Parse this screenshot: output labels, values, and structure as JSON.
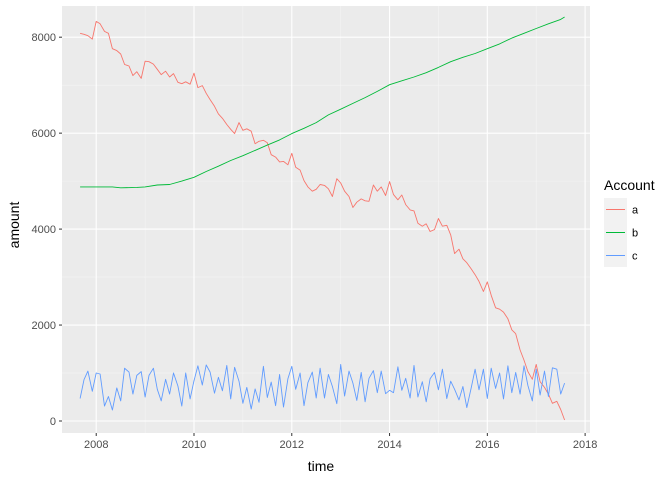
{
  "chart_data": {
    "type": "line",
    "xlabel": "time",
    "ylabel": "amount",
    "xlim": [
      2007.3,
      2018.1
    ],
    "ylim": [
      -250,
      8650
    ],
    "x_ticks": [
      2008,
      2010,
      2012,
      2014,
      2016,
      2018
    ],
    "x_tick_labels": [
      "2008",
      "2010",
      "2012",
      "2014",
      "2016",
      "2018"
    ],
    "y_ticks": [
      0,
      2000,
      4000,
      6000,
      8000
    ],
    "y_tick_labels": [
      "0",
      "2000",
      "4000",
      "6000",
      "8000"
    ],
    "grid": true,
    "legend": {
      "title": "Account",
      "position": "right"
    },
    "series": [
      {
        "name": "a",
        "color": "#F8766D",
        "points": [
          [
            2007.67,
            8080
          ],
          [
            2007.75,
            8060
          ],
          [
            2007.83,
            8030
          ],
          [
            2007.92,
            7960
          ],
          [
            2008.0,
            8330
          ],
          [
            2008.08,
            8280
          ],
          [
            2008.17,
            8120
          ],
          [
            2008.25,
            8080
          ],
          [
            2008.33,
            7760
          ],
          [
            2008.42,
            7720
          ],
          [
            2008.5,
            7650
          ],
          [
            2008.58,
            7430
          ],
          [
            2008.67,
            7400
          ],
          [
            2008.75,
            7200
          ],
          [
            2008.83,
            7280
          ],
          [
            2008.92,
            7140
          ],
          [
            2009.0,
            7500
          ],
          [
            2009.08,
            7490
          ],
          [
            2009.17,
            7440
          ],
          [
            2009.25,
            7330
          ],
          [
            2009.33,
            7220
          ],
          [
            2009.42,
            7290
          ],
          [
            2009.5,
            7170
          ],
          [
            2009.58,
            7240
          ],
          [
            2009.67,
            7060
          ],
          [
            2009.75,
            7030
          ],
          [
            2009.83,
            7070
          ],
          [
            2009.92,
            7020
          ],
          [
            2010.0,
            7250
          ],
          [
            2010.08,
            6950
          ],
          [
            2010.17,
            6990
          ],
          [
            2010.25,
            6830
          ],
          [
            2010.33,
            6700
          ],
          [
            2010.42,
            6560
          ],
          [
            2010.5,
            6400
          ],
          [
            2010.58,
            6310
          ],
          [
            2010.67,
            6180
          ],
          [
            2010.75,
            6080
          ],
          [
            2010.83,
            5990
          ],
          [
            2010.92,
            6220
          ],
          [
            2011.0,
            6060
          ],
          [
            2011.08,
            6090
          ],
          [
            2011.17,
            6040
          ],
          [
            2011.25,
            5780
          ],
          [
            2011.33,
            5830
          ],
          [
            2011.42,
            5850
          ],
          [
            2011.5,
            5800
          ],
          [
            2011.58,
            5550
          ],
          [
            2011.67,
            5500
          ],
          [
            2011.75,
            5400
          ],
          [
            2011.83,
            5410
          ],
          [
            2011.92,
            5340
          ],
          [
            2012.0,
            5580
          ],
          [
            2012.08,
            5290
          ],
          [
            2012.17,
            5230
          ],
          [
            2012.25,
            5010
          ],
          [
            2012.33,
            4880
          ],
          [
            2012.42,
            4790
          ],
          [
            2012.5,
            4830
          ],
          [
            2012.58,
            4930
          ],
          [
            2012.67,
            4910
          ],
          [
            2012.75,
            4840
          ],
          [
            2012.83,
            4680
          ],
          [
            2012.92,
            5050
          ],
          [
            2013.0,
            4960
          ],
          [
            2013.08,
            4790
          ],
          [
            2013.17,
            4680
          ],
          [
            2013.25,
            4450
          ],
          [
            2013.33,
            4560
          ],
          [
            2013.42,
            4630
          ],
          [
            2013.5,
            4590
          ],
          [
            2013.58,
            4580
          ],
          [
            2013.67,
            4920
          ],
          [
            2013.75,
            4790
          ],
          [
            2013.83,
            4880
          ],
          [
            2013.92,
            4700
          ],
          [
            2014.0,
            4990
          ],
          [
            2014.08,
            4720
          ],
          [
            2014.17,
            4610
          ],
          [
            2014.25,
            4710
          ],
          [
            2014.33,
            4510
          ],
          [
            2014.42,
            4400
          ],
          [
            2014.5,
            4380
          ],
          [
            2014.58,
            4120
          ],
          [
            2014.67,
            4060
          ],
          [
            2014.75,
            4110
          ],
          [
            2014.83,
            3950
          ],
          [
            2014.92,
            3990
          ],
          [
            2015.0,
            4220
          ],
          [
            2015.08,
            4060
          ],
          [
            2015.17,
            4080
          ],
          [
            2015.25,
            3880
          ],
          [
            2015.33,
            3490
          ],
          [
            2015.42,
            3580
          ],
          [
            2015.5,
            3380
          ],
          [
            2015.58,
            3300
          ],
          [
            2015.67,
            3170
          ],
          [
            2015.75,
            3050
          ],
          [
            2015.83,
            2910
          ],
          [
            2015.92,
            2700
          ],
          [
            2016.0,
            2900
          ],
          [
            2016.08,
            2620
          ],
          [
            2016.17,
            2360
          ],
          [
            2016.25,
            2330
          ],
          [
            2016.33,
            2270
          ],
          [
            2016.42,
            2130
          ],
          [
            2016.5,
            1900
          ],
          [
            2016.58,
            1820
          ],
          [
            2016.67,
            1480
          ],
          [
            2016.75,
            1270
          ],
          [
            2016.83,
            1030
          ],
          [
            2016.92,
            870
          ],
          [
            2017.0,
            1180
          ],
          [
            2017.08,
            820
          ],
          [
            2017.17,
            700
          ],
          [
            2017.25,
            560
          ],
          [
            2017.33,
            370
          ],
          [
            2017.42,
            410
          ],
          [
            2017.5,
            240
          ],
          [
            2017.58,
            20
          ]
        ]
      },
      {
        "name": "b",
        "color": "#00BA38",
        "points": [
          [
            2007.67,
            4880
          ],
          [
            2008.0,
            4880
          ],
          [
            2008.33,
            4880
          ],
          [
            2008.5,
            4860
          ],
          [
            2008.83,
            4870
          ],
          [
            2009.0,
            4880
          ],
          [
            2009.25,
            4920
          ],
          [
            2009.5,
            4930
          ],
          [
            2009.75,
            5000
          ],
          [
            2010.0,
            5080
          ],
          [
            2010.25,
            5200
          ],
          [
            2010.5,
            5310
          ],
          [
            2010.75,
            5430
          ],
          [
            2011.0,
            5530
          ],
          [
            2011.25,
            5640
          ],
          [
            2011.5,
            5750
          ],
          [
            2011.75,
            5860
          ],
          [
            2012.0,
            5990
          ],
          [
            2012.25,
            6100
          ],
          [
            2012.5,
            6220
          ],
          [
            2012.75,
            6380
          ],
          [
            2013.0,
            6500
          ],
          [
            2013.25,
            6620
          ],
          [
            2013.5,
            6740
          ],
          [
            2013.75,
            6870
          ],
          [
            2014.0,
            7010
          ],
          [
            2014.25,
            7090
          ],
          [
            2014.5,
            7170
          ],
          [
            2014.75,
            7260
          ],
          [
            2015.0,
            7370
          ],
          [
            2015.25,
            7490
          ],
          [
            2015.5,
            7580
          ],
          [
            2015.75,
            7660
          ],
          [
            2016.0,
            7760
          ],
          [
            2016.25,
            7860
          ],
          [
            2016.5,
            7980
          ],
          [
            2016.75,
            8080
          ],
          [
            2017.0,
            8180
          ],
          [
            2017.25,
            8280
          ],
          [
            2017.5,
            8370
          ],
          [
            2017.58,
            8420
          ]
        ]
      },
      {
        "name": "c",
        "color": "#619CFF",
        "points": [
          [
            2007.67,
            470
          ],
          [
            2007.75,
            860
          ],
          [
            2007.83,
            1040
          ],
          [
            2007.92,
            620
          ],
          [
            2008.0,
            1000
          ],
          [
            2008.08,
            980
          ],
          [
            2008.17,
            310
          ],
          [
            2008.25,
            510
          ],
          [
            2008.33,
            230
          ],
          [
            2008.42,
            690
          ],
          [
            2008.5,
            420
          ],
          [
            2008.58,
            1100
          ],
          [
            2008.67,
            1020
          ],
          [
            2008.75,
            560
          ],
          [
            2008.83,
            950
          ],
          [
            2008.92,
            1030
          ],
          [
            2009.0,
            500
          ],
          [
            2009.08,
            950
          ],
          [
            2009.17,
            1100
          ],
          [
            2009.25,
            660
          ],
          [
            2009.33,
            420
          ],
          [
            2009.42,
            870
          ],
          [
            2009.5,
            560
          ],
          [
            2009.58,
            1000
          ],
          [
            2009.67,
            730
          ],
          [
            2009.75,
            310
          ],
          [
            2009.83,
            1000
          ],
          [
            2009.92,
            460
          ],
          [
            2010.0,
            840
          ],
          [
            2010.08,
            1150
          ],
          [
            2010.17,
            750
          ],
          [
            2010.25,
            1170
          ],
          [
            2010.33,
            1020
          ],
          [
            2010.42,
            580
          ],
          [
            2010.5,
            910
          ],
          [
            2010.58,
            630
          ],
          [
            2010.67,
            1160
          ],
          [
            2010.75,
            460
          ],
          [
            2010.83,
            1120
          ],
          [
            2010.92,
            830
          ],
          [
            2011.0,
            370
          ],
          [
            2011.08,
            700
          ],
          [
            2011.17,
            250
          ],
          [
            2011.25,
            670
          ],
          [
            2011.33,
            390
          ],
          [
            2011.42,
            1140
          ],
          [
            2011.5,
            490
          ],
          [
            2011.58,
            810
          ],
          [
            2011.67,
            320
          ],
          [
            2011.75,
            970
          ],
          [
            2011.83,
            290
          ],
          [
            2011.92,
            880
          ],
          [
            2012.0,
            1140
          ],
          [
            2012.08,
            660
          ],
          [
            2012.17,
            1000
          ],
          [
            2012.25,
            320
          ],
          [
            2012.33,
            800
          ],
          [
            2012.42,
            1020
          ],
          [
            2012.5,
            480
          ],
          [
            2012.58,
            1100
          ],
          [
            2012.67,
            480
          ],
          [
            2012.75,
            970
          ],
          [
            2012.83,
            720
          ],
          [
            2012.92,
            360
          ],
          [
            2013.0,
            1180
          ],
          [
            2013.08,
            520
          ],
          [
            2013.17,
            1040
          ],
          [
            2013.25,
            790
          ],
          [
            2013.33,
            430
          ],
          [
            2013.42,
            1010
          ],
          [
            2013.5,
            400
          ],
          [
            2013.58,
            890
          ],
          [
            2013.67,
            1050
          ],
          [
            2013.75,
            590
          ],
          [
            2013.83,
            1040
          ],
          [
            2013.92,
            570
          ],
          [
            2014.0,
            640
          ],
          [
            2014.08,
            590
          ],
          [
            2014.17,
            1130
          ],
          [
            2014.25,
            640
          ],
          [
            2014.33,
            890
          ],
          [
            2014.42,
            480
          ],
          [
            2014.5,
            1160
          ],
          [
            2014.58,
            500
          ],
          [
            2014.67,
            820
          ],
          [
            2014.75,
            400
          ],
          [
            2014.83,
            880
          ],
          [
            2014.92,
            1010
          ],
          [
            2015.0,
            650
          ],
          [
            2015.08,
            1080
          ],
          [
            2015.17,
            470
          ],
          [
            2015.25,
            830
          ],
          [
            2015.33,
            660
          ],
          [
            2015.42,
            440
          ],
          [
            2015.5,
            720
          ],
          [
            2015.58,
            280
          ],
          [
            2015.67,
            690
          ],
          [
            2015.75,
            1080
          ],
          [
            2015.83,
            650
          ],
          [
            2015.92,
            1080
          ],
          [
            2016.0,
            470
          ],
          [
            2016.08,
            1100
          ],
          [
            2016.17,
            680
          ],
          [
            2016.25,
            1000
          ],
          [
            2016.33,
            460
          ],
          [
            2016.42,
            1150
          ],
          [
            2016.5,
            590
          ],
          [
            2016.58,
            1010
          ],
          [
            2016.67,
            560
          ],
          [
            2016.75,
            1150
          ],
          [
            2016.83,
            740
          ],
          [
            2016.92,
            420
          ],
          [
            2017.0,
            1080
          ],
          [
            2017.08,
            540
          ],
          [
            2017.17,
            1040
          ],
          [
            2017.25,
            510
          ],
          [
            2017.33,
            1110
          ],
          [
            2017.42,
            1080
          ],
          [
            2017.5,
            560
          ],
          [
            2017.58,
            790
          ]
        ]
      }
    ]
  }
}
